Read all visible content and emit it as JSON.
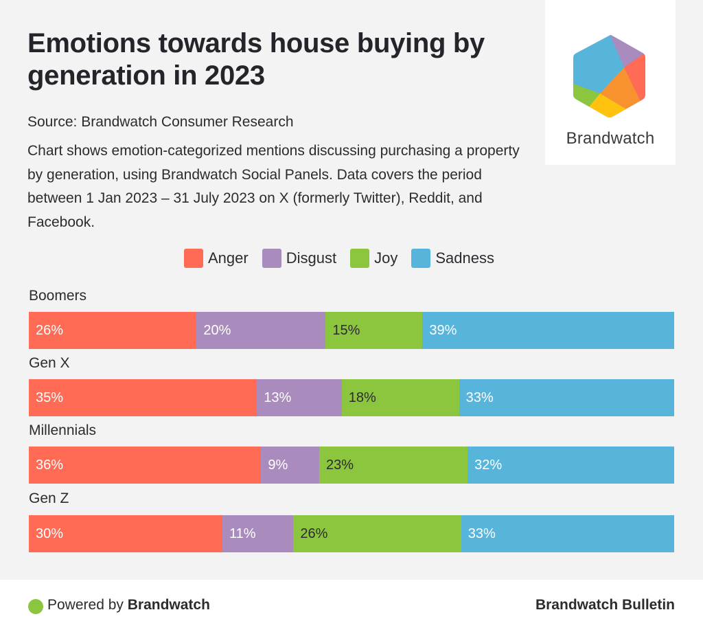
{
  "header": {
    "title": "Emotions towards house buying by generation in 2023",
    "source": "Source: Brandwatch Consumer Research",
    "description": "Chart shows emotion-categorized mentions discussing purchasing a property by generation, using Brandwatch Social Panels. Data covers the period between 1 Jan 2023 – 31 July 2023 on X (formerly Twitter), Reddit, and Facebook."
  },
  "logo": {
    "icon": "brandwatch-hexagon-logo-icon",
    "text": "Brandwatch",
    "colors": [
      "#57b5dc",
      "#a98bbd",
      "#ff6b55",
      "#f7922f",
      "#ffc20e",
      "#8cc63f"
    ]
  },
  "chart_data": {
    "type": "bar",
    "orientation": "horizontal",
    "stacked": true,
    "normalized": true,
    "title": "Emotions towards house buying by generation in 2023",
    "xlabel": "",
    "ylabel": "",
    "legend_position": "top-center",
    "grid": false,
    "categories": [
      "Boomers",
      "Gen X",
      "Millennials",
      "Gen Z"
    ],
    "series": [
      {
        "name": "Anger",
        "color": "#ff6b55",
        "label_color": "#ffffff",
        "values": [
          26,
          35,
          36,
          30
        ]
      },
      {
        "name": "Disgust",
        "color": "#a98bbd",
        "label_color": "#ffffff",
        "values": [
          20,
          13,
          9,
          11
        ]
      },
      {
        "name": "Joy",
        "color": "#8cc63f",
        "label_color": "#2b2b30",
        "values": [
          15,
          18,
          23,
          26
        ]
      },
      {
        "name": "Sadness",
        "color": "#57b5dc",
        "label_color": "#ffffff",
        "values": [
          39,
          33,
          32,
          33
        ]
      }
    ],
    "value_suffix": "%"
  },
  "footer": {
    "powered_by": "Powered by",
    "powered_brand": "Brandwatch",
    "right_text": "Brandwatch Bulletin",
    "dot_color": "#8cc63f"
  }
}
